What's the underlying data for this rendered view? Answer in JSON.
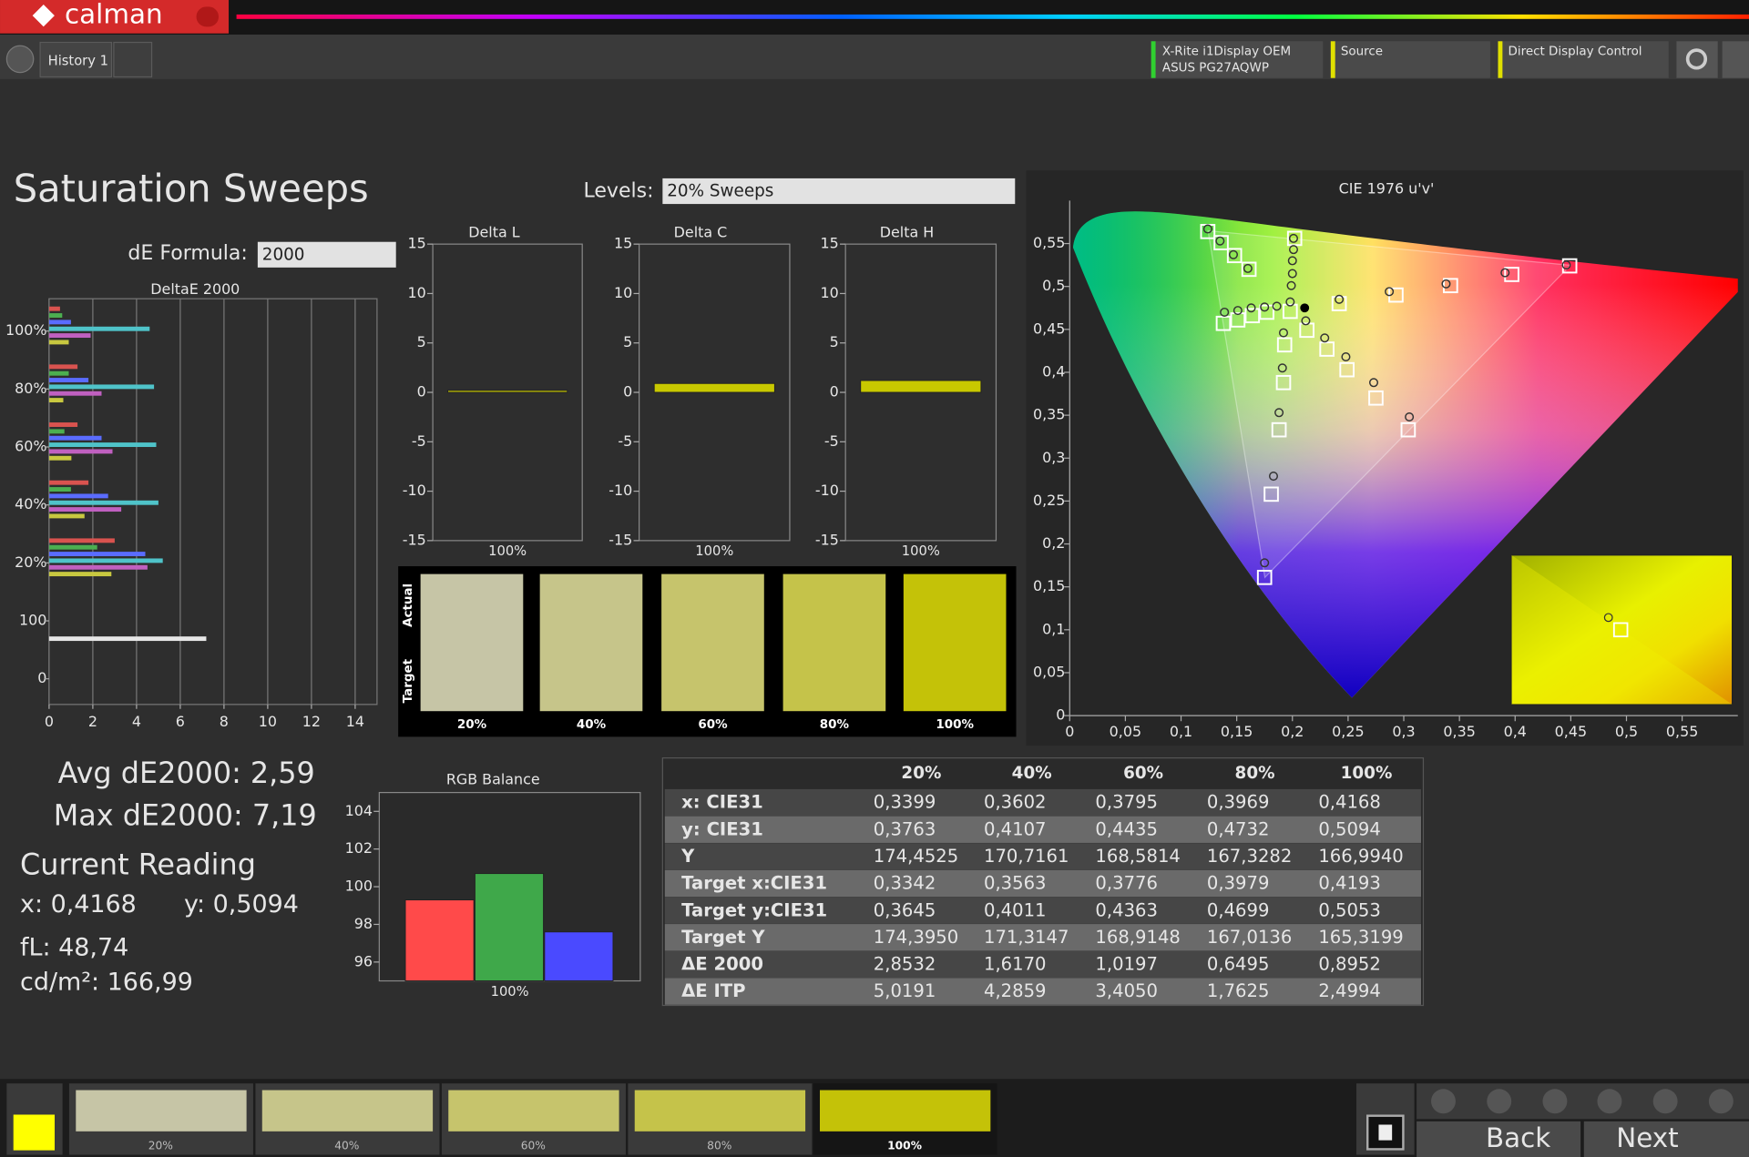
{
  "header": {
    "logo": "calman",
    "tab": "History 1",
    "meter": "X-Rite i1Display OEM",
    "display": "ASUS PG27AQWP",
    "source": "Source",
    "control": "Direct Display Control"
  },
  "title": "Saturation Sweeps",
  "levels": {
    "label": "Levels:",
    "value": "20% Sweeps"
  },
  "de_formula": {
    "label": "dE Formula:",
    "value": "2000"
  },
  "stats": {
    "avg": "Avg dE2000: 2,59",
    "max": "Max dE2000: 7,19",
    "current_title": "Current Reading",
    "x": "x: 0,4168",
    "y": "y: 0,5094",
    "fl": "fL: 48,74",
    "cdm2": "cd/m²: 166,99"
  },
  "chart_data": [
    {
      "type": "hbar",
      "title": "DeltaE 2000",
      "categories": [
        "100%",
        "80%",
        "60%",
        "40%",
        "20%",
        "100",
        "0"
      ],
      "xlim": [
        0,
        15
      ],
      "xticks": [
        0,
        2,
        4,
        6,
        8,
        10,
        12,
        14
      ],
      "grid": true,
      "series": [
        {
          "color": "#d9534f",
          "values": [
            0.5,
            1.3,
            1.3,
            1.8,
            3.0,
            null,
            null
          ]
        },
        {
          "color": "#4caf50",
          "values": [
            0.6,
            0.9,
            0.7,
            1.0,
            2.2,
            null,
            null
          ]
        },
        {
          "color": "#5a6cff",
          "values": [
            1.0,
            1.8,
            2.4,
            2.7,
            4.4,
            null,
            null
          ]
        },
        {
          "color": "#4fc3c9",
          "values": [
            4.6,
            4.8,
            4.9,
            5.0,
            5.2,
            null,
            null
          ]
        },
        {
          "color": "#c060c0",
          "values": [
            1.9,
            2.4,
            2.9,
            3.3,
            4.5,
            null,
            null
          ]
        },
        {
          "color": "#c8c840",
          "values": [
            0.9,
            0.65,
            1.02,
            1.62,
            2.85,
            null,
            null
          ]
        },
        {
          "color": "#e6e6e6",
          "values": [
            null,
            null,
            null,
            null,
            null,
            7.19,
            null
          ]
        }
      ]
    },
    {
      "type": "bar",
      "title": "Delta L",
      "categories": [
        "100%"
      ],
      "values": [
        0.2
      ],
      "color": "#c8c800",
      "ylim": [
        -15,
        15
      ],
      "yticks": [
        -15,
        -10,
        -5,
        0,
        5,
        10,
        15
      ],
      "grid": false
    },
    {
      "type": "bar",
      "title": "Delta C",
      "categories": [
        "100%"
      ],
      "values": [
        0.9
      ],
      "color": "#c8c800",
      "ylim": [
        -15,
        15
      ],
      "yticks": [
        -15,
        -10,
        -5,
        0,
        5,
        10,
        15
      ],
      "grid": false
    },
    {
      "type": "bar",
      "title": "Delta H",
      "categories": [
        "100%"
      ],
      "values": [
        1.2
      ],
      "color": "#c8c800",
      "ylim": [
        -15,
        15
      ],
      "yticks": [
        -15,
        -10,
        -5,
        0,
        5,
        10,
        15
      ],
      "grid": false
    },
    {
      "type": "bar",
      "title": "RGB Balance",
      "categories": [
        "100%"
      ],
      "ylim": [
        95,
        105
      ],
      "yticks": [
        96,
        98,
        100,
        102,
        104
      ],
      "grid": false,
      "series": [
        {
          "color": "#ff4a4a",
          "values": [
            99.3
          ]
        },
        {
          "color": "#3fa84a",
          "values": [
            100.7
          ]
        },
        {
          "color": "#4a4aff",
          "values": [
            97.6
          ]
        }
      ]
    },
    {
      "type": "scatter",
      "title": "CIE 1976 u'v'",
      "xlim": [
        0,
        0.6
      ],
      "ylim": [
        0,
        0.6
      ],
      "xticks": [
        0,
        {
          "value": 0.05,
          "label": "0,05"
        },
        {
          "value": 0.1,
          "label": "0,1"
        },
        {
          "value": 0.15,
          "label": "0,15"
        },
        {
          "value": 0.2,
          "label": "0,2"
        },
        {
          "value": 0.25,
          "label": "0,25"
        },
        {
          "value": 0.3,
          "label": "0,3"
        },
        {
          "value": 0.35,
          "label": "0,35"
        },
        {
          "value": 0.4,
          "label": "0,4"
        },
        {
          "value": 0.45,
          "label": "0,45"
        },
        {
          "value": 0.5,
          "label": "0,5"
        },
        {
          "value": 0.55,
          "label": "0,55"
        }
      ],
      "yticks": [
        0,
        {
          "value": 0.05,
          "label": "0,05"
        },
        {
          "value": 0.1,
          "label": "0,1"
        },
        {
          "value": 0.15,
          "label": "0,15"
        },
        {
          "value": 0.2,
          "label": "0,2"
        },
        {
          "value": 0.25,
          "label": "0,25"
        },
        {
          "value": 0.3,
          "label": "0,3"
        },
        {
          "value": 0.35,
          "label": "0,35"
        },
        {
          "value": 0.4,
          "label": "0,4"
        },
        {
          "value": 0.45,
          "label": "0,45"
        },
        {
          "value": 0.5,
          "label": "0,5"
        },
        {
          "value": 0.55,
          "label": "0,55"
        }
      ],
      "series": [
        {
          "marker": "square",
          "color": "#ffffff",
          "x": [
            0.124,
            0.136,
            0.148,
            0.161,
            0.138,
            0.151,
            0.164,
            0.177,
            0.193,
            0.192,
            0.188,
            0.181,
            0.175,
            0.213,
            0.231,
            0.249,
            0.275,
            0.304,
            0.242,
            0.293,
            0.342,
            0.397,
            0.449,
            0.202,
            0.198
          ],
          "values": [
            0.564,
            0.551,
            0.536,
            0.52,
            0.457,
            0.461,
            0.466,
            0.47,
            0.432,
            0.388,
            0.333,
            0.258,
            0.161,
            0.449,
            0.427,
            0.403,
            0.37,
            0.333,
            0.48,
            0.49,
            0.501,
            0.514,
            0.524,
            0.556,
            0.471
          ]
        },
        {
          "marker": "circle",
          "color": "#cfcfcf",
          "x": [
            0.124,
            0.135,
            0.147,
            0.16,
            0.139,
            0.151,
            0.163,
            0.175,
            0.186,
            0.192,
            0.191,
            0.188,
            0.183,
            0.175,
            0.212,
            0.229,
            0.248,
            0.273,
            0.305,
            0.242,
            0.287,
            0.338,
            0.391,
            0.446,
            0.201,
            0.201,
            0.2,
            0.2,
            0.199,
            0.198
          ],
          "values": [
            0.567,
            0.553,
            0.537,
            0.521,
            0.47,
            0.472,
            0.475,
            0.476,
            0.477,
            0.446,
            0.405,
            0.353,
            0.279,
            0.178,
            0.46,
            0.44,
            0.418,
            0.388,
            0.348,
            0.485,
            0.494,
            0.503,
            0.516,
            0.525,
            0.556,
            0.543,
            0.53,
            0.515,
            0.501,
            0.482
          ]
        },
        {
          "marker": "circle",
          "color": "#000000",
          "x": [
            0.211
          ],
          "values": [
            0.475
          ]
        }
      ]
    }
  ],
  "swatches": {
    "actual": "Actual",
    "target": "Target",
    "items": [
      {
        "label": "20%",
        "color": "#c6c5a6"
      },
      {
        "label": "40%",
        "color": "#c6c58a"
      },
      {
        "label": "60%",
        "color": "#c6c46c"
      },
      {
        "label": "80%",
        "color": "#c5c34a"
      },
      {
        "label": "100%",
        "color": "#c4c208"
      }
    ]
  },
  "table": {
    "header": [
      "20%",
      "40%",
      "60%",
      "80%",
      "100%"
    ],
    "rows": [
      [
        "x: CIE31",
        "0,3399",
        "0,3602",
        "0,3795",
        "0,3969",
        "0,4168"
      ],
      [
        "y: CIE31",
        "0,3763",
        "0,4107",
        "0,4435",
        "0,4732",
        "0,5094"
      ],
      [
        "Y",
        "174,4525",
        "170,7161",
        "168,5814",
        "167,3282",
        "166,9940"
      ],
      [
        "Target x:CIE31",
        "0,3342",
        "0,3563",
        "0,3776",
        "0,3979",
        "0,4193"
      ],
      [
        "Target y:CIE31",
        "0,3645",
        "0,4011",
        "0,4363",
        "0,4699",
        "0,5053"
      ],
      [
        "Target Y",
        "174,3950",
        "171,3147",
        "168,9148",
        "167,0136",
        "165,3199"
      ],
      [
        "ΔE 2000",
        "2,8532",
        "1,6170",
        "1,0197",
        "0,6495",
        "0,8952"
      ],
      [
        "ΔE ITP",
        "5,0191",
        "4,2859",
        "3,4050",
        "1,7625",
        "2,4994"
      ]
    ]
  },
  "footer": {
    "back": "Back",
    "next": "Next"
  }
}
